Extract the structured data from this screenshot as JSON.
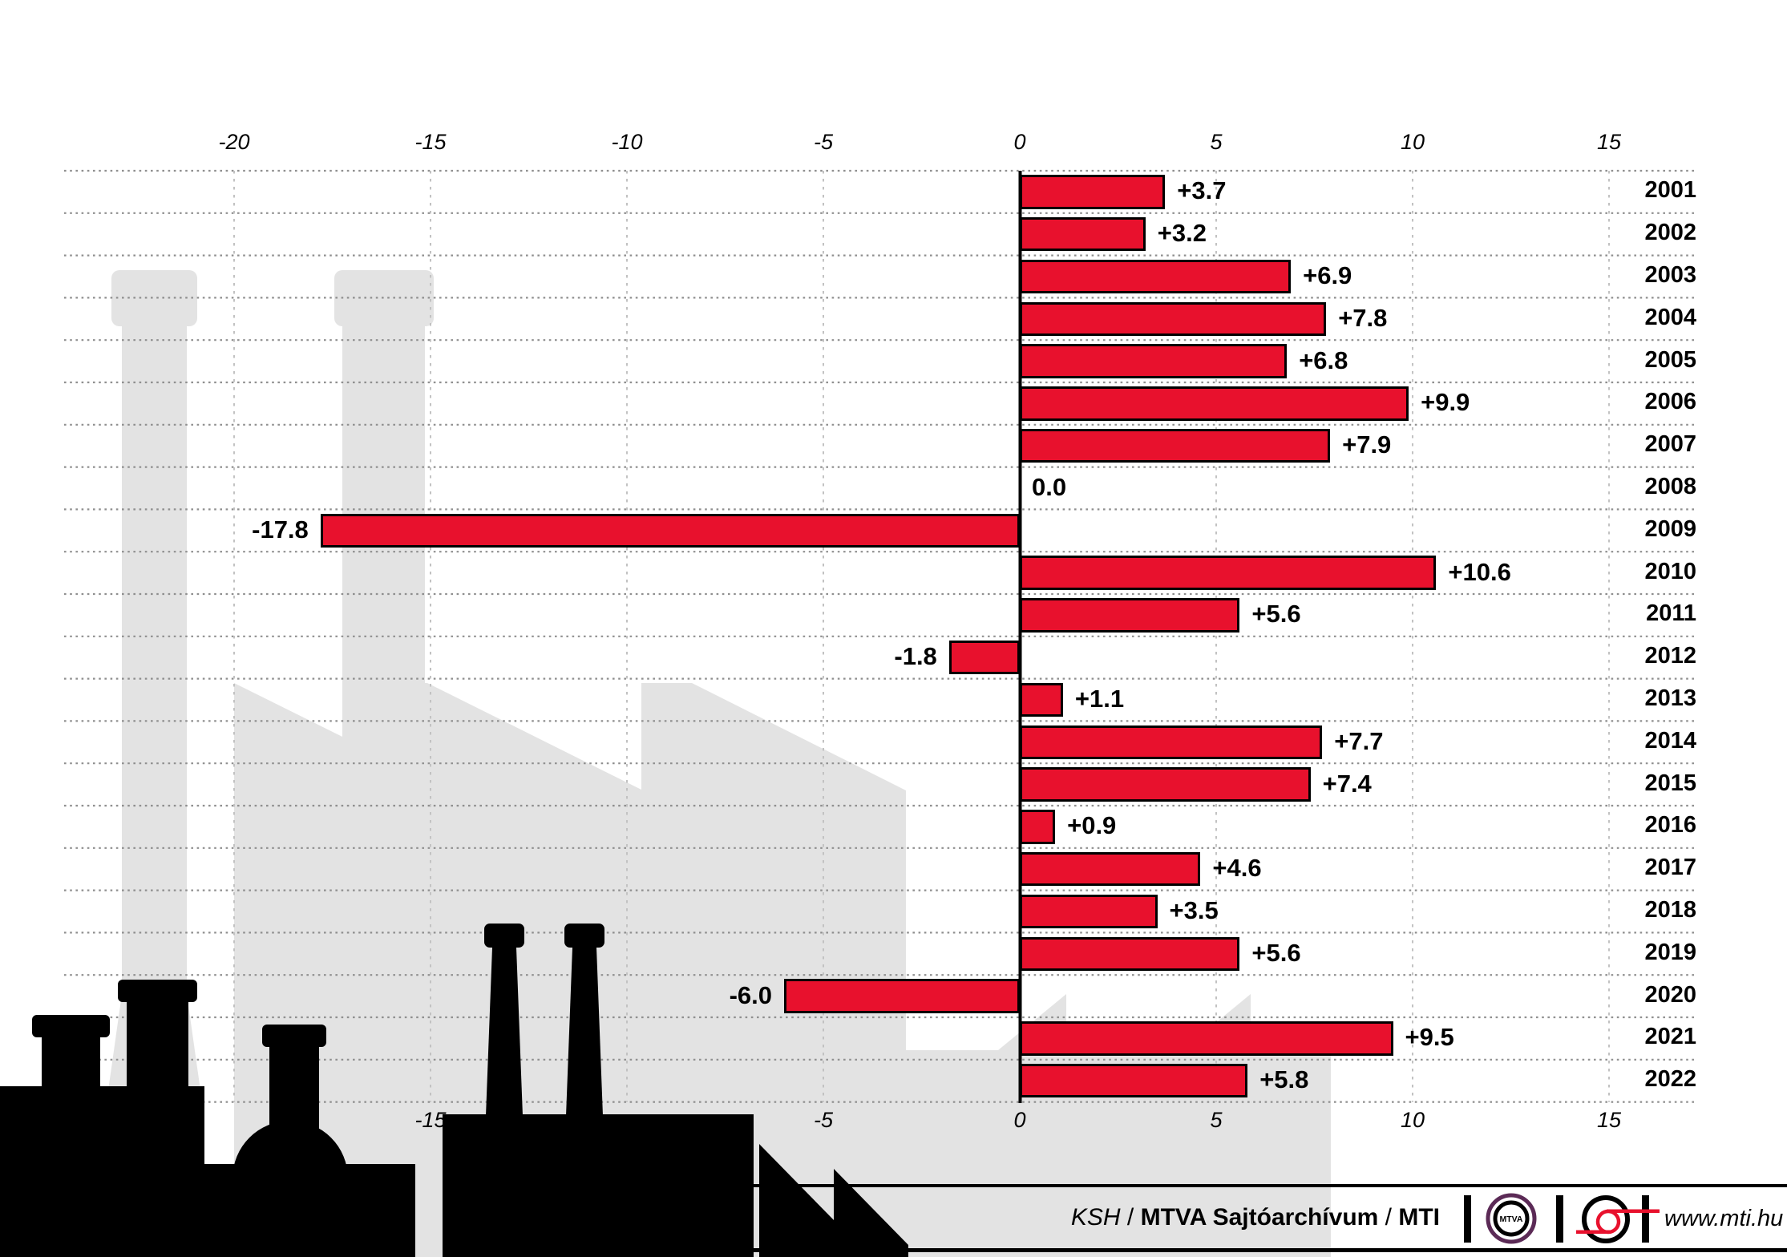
{
  "chart_data": {
    "type": "bar",
    "orientation": "horizontal",
    "title": "",
    "categories": [
      "2001",
      "2002",
      "2003",
      "2004",
      "2005",
      "2006",
      "2007",
      "2008",
      "2009",
      "2010",
      "2011",
      "2012",
      "2013",
      "2014",
      "2015",
      "2016",
      "2017",
      "2018",
      "2019",
      "2020",
      "2021",
      "2022"
    ],
    "values": [
      3.7,
      3.2,
      6.9,
      7.8,
      6.8,
      9.9,
      7.9,
      0.0,
      -17.8,
      10.6,
      5.6,
      -1.8,
      1.1,
      7.7,
      7.4,
      0.9,
      4.6,
      3.5,
      5.6,
      -6.0,
      9.5,
      5.8
    ],
    "value_labels": [
      "+3.7",
      "+3.2",
      "+6.9",
      "+7.8",
      "+6.8",
      "+9.9",
      "+7.9",
      "0.0",
      "-17.8",
      "+10.6",
      "+5.6",
      "-1.8",
      "+1.1",
      "+7.7",
      "+7.4",
      "+0.9",
      "+4.6",
      "+3.5",
      "+5.6",
      "-6.0",
      "+9.5",
      "+5.8"
    ],
    "x_axis": {
      "top_ticks": [
        "-20",
        "-15",
        "-10",
        "-5",
        "0",
        "5",
        "10",
        "15"
      ],
      "top_tick_values": [
        -20,
        -15,
        -10,
        -5,
        0,
        5,
        10,
        15
      ],
      "bottom_ticks": [
        "-15",
        "-5",
        "0",
        "5",
        "10",
        "15"
      ],
      "bottom_tick_values": [
        -15,
        -5,
        0,
        5,
        10,
        15
      ],
      "gridlines": true
    },
    "ylabel": "",
    "xlabel": "",
    "legend": null
  },
  "footer": {
    "credit_parts": [
      {
        "text": "KSH",
        "style": "italic"
      },
      {
        "text": " / ",
        "style": "normal"
      },
      {
        "text": "MTVA Sajtóarchívum",
        "style": "bold"
      },
      {
        "text": " / ",
        "style": "normal"
      },
      {
        "text": "MTI",
        "style": "bold"
      }
    ],
    "mtva_logo_text": "MTVA",
    "url": "www.mti.hu"
  },
  "colors": {
    "bar_red": "#e8112d",
    "mti_red": "#e8112d",
    "mtva_purple": "#5b2a56",
    "silhouette_gray": "#e3e3e3",
    "grid_dot": "#8f8f8f",
    "grid_dash": "#c2c2c2"
  }
}
